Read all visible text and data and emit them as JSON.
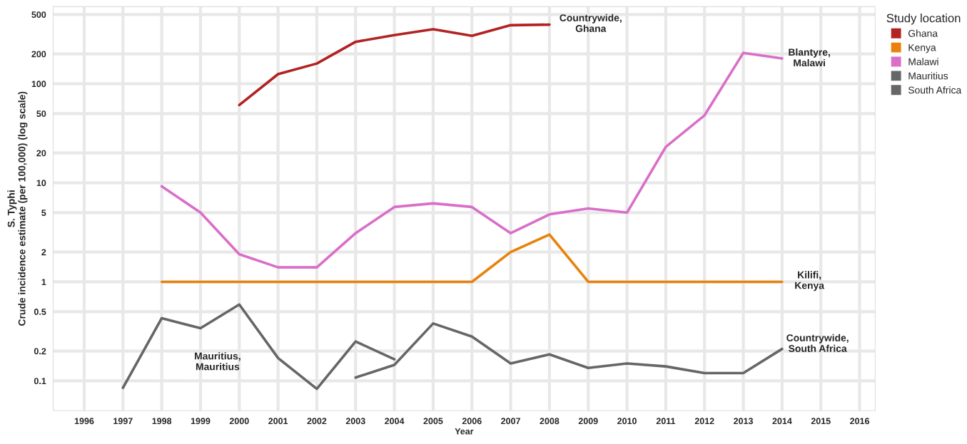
{
  "chart_data": {
    "type": "line",
    "xlabel": "Year",
    "ylabel": "S. Typhi\nCrude incidence estimate (per 100,000) (log scale)",
    "legend_title": "Study location",
    "legend": "top right",
    "grid": true,
    "log": "y",
    "line_style": "solid",
    "marker": "none",
    "xlim": [
      1995.2,
      2016.4
    ],
    "xticks": [
      1996,
      1997,
      1998,
      1999,
      2000,
      2001,
      2002,
      2003,
      2004,
      2005,
      2006,
      2007,
      2008,
      2009,
      2010,
      2011,
      2012,
      2013,
      2014,
      2015,
      2016
    ],
    "ylim": [
      0.05,
      600
    ],
    "yticks": [
      0.1,
      0.2,
      0.5,
      1,
      2,
      5,
      10,
      20,
      50,
      100,
      200,
      500
    ],
    "series": [
      {
        "name": "Ghana",
        "color": "#b22222",
        "x": [
          2000,
          2001,
          2002,
          2003,
          2004,
          2005,
          2006,
          2007,
          2008
        ],
        "values": [
          61,
          125,
          160,
          265,
          310,
          355,
          305,
          390,
          395
        ]
      },
      {
        "name": "Kenya",
        "color": "#e8820c",
        "x": [
          1998,
          1999,
          2000,
          2001,
          2002,
          2003,
          2004,
          2005,
          2006,
          2007,
          2008,
          2009,
          2010,
          2011,
          2012,
          2013,
          2014
        ],
        "values": [
          1,
          1,
          1,
          1,
          1,
          1,
          1,
          1,
          1,
          2.0,
          3.0,
          1,
          1,
          1,
          1,
          1,
          1
        ]
      },
      {
        "name": "Malawi",
        "color": "#d96fc8",
        "x": [
          1998,
          1999,
          2000,
          2001,
          2002,
          2003,
          2004,
          2005,
          2006,
          2007,
          2008,
          2009,
          2010,
          2011,
          2012,
          2013,
          2014
        ],
        "values": [
          9.2,
          5.0,
          1.9,
          1.4,
          1.4,
          3.1,
          5.7,
          6.2,
          5.7,
          3.1,
          4.8,
          5.5,
          5.0,
          23,
          48,
          205,
          180
        ]
      },
      {
        "name": "Mauritius",
        "color": "#666666",
        "x": [
          1997,
          1998,
          1999,
          2000,
          2001,
          2002,
          2003,
          2004
        ],
        "values": [
          0.085,
          0.43,
          0.34,
          0.59,
          0.17,
          0.083,
          0.25,
          0.165
        ]
      },
      {
        "name": "South Africa",
        "color": "#666666",
        "x": [
          2003,
          2004,
          2005,
          2006,
          2007,
          2008,
          2009,
          2010,
          2011,
          2012,
          2013,
          2014
        ],
        "values": [
          0.108,
          0.145,
          0.38,
          0.28,
          0.15,
          0.185,
          0.135,
          0.15,
          0.14,
          0.12,
          0.12,
          0.21
        ]
      }
    ],
    "annotations": [
      "Countrywide,\nGhana",
      "Blantyre,\nMalawi",
      "Kilifi,\nKenya",
      "Countrywide,\nSouth Africa",
      "Mauritius,\nMauritius"
    ]
  }
}
